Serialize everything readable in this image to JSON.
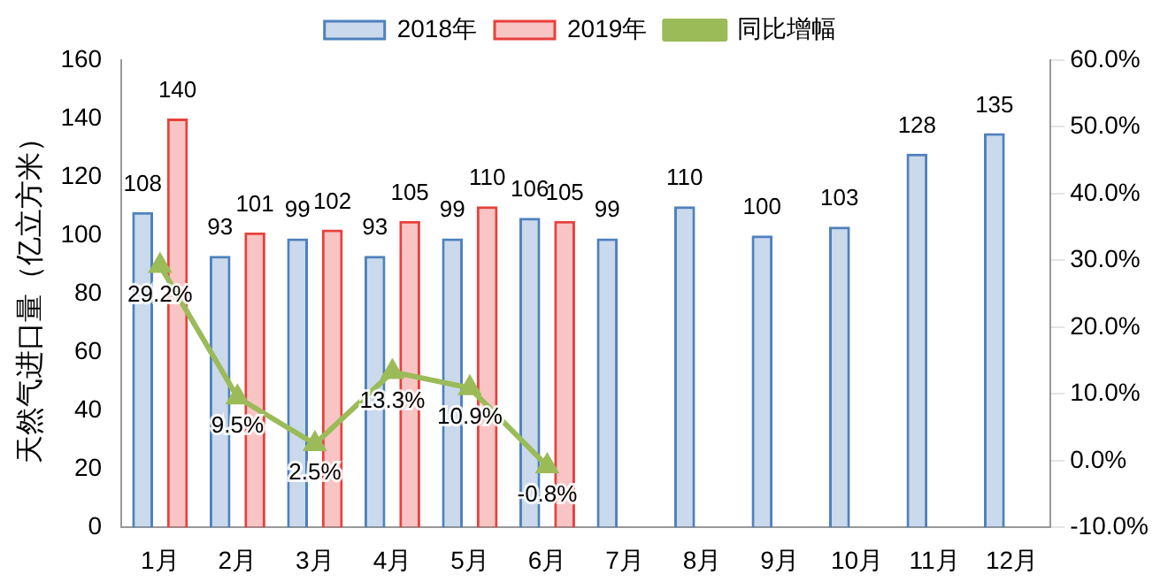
{
  "chart_data": {
    "type": "bar",
    "ylabel": "天然气进口量（亿立方米）",
    "categories": [
      "1月",
      "2月",
      "3月",
      "4月",
      "5月",
      "6月",
      "7月",
      "8月",
      "9月",
      "10月",
      "11月",
      "12月"
    ],
    "series": [
      {
        "name": "2018年",
        "color": "#4f81bd",
        "values": [
          108,
          93,
          99,
          93,
          99,
          106,
          99,
          110,
          100,
          103,
          128,
          135
        ]
      },
      {
        "name": "2019年",
        "color": "#e8403c",
        "values": [
          140,
          101,
          102,
          105,
          110,
          105,
          null,
          null,
          null,
          null,
          null,
          null
        ]
      },
      {
        "name": "同比增幅",
        "type": "line",
        "axis": "y2",
        "color": "#9bbb59",
        "marker": "triangle",
        "values": [
          29.2,
          9.5,
          2.5,
          13.3,
          10.9,
          -0.8,
          null,
          null,
          null,
          null,
          null,
          null
        ],
        "value_labels": [
          "29.2%",
          "9.5%",
          "2.5%",
          "13.3%",
          "10.9%",
          "-0.8%",
          null,
          null,
          null,
          null,
          null,
          null
        ]
      }
    ],
    "ylim": [
      0,
      160
    ],
    "yticks": [
      0,
      20,
      40,
      60,
      80,
      100,
      120,
      140,
      160
    ],
    "y2lim": [
      -10,
      60
    ],
    "y2ticks": [
      {
        "value": -10,
        "label": "-10.0%"
      },
      {
        "value": 0,
        "label": "0.0%"
      },
      {
        "value": 10,
        "label": "10.0%"
      },
      {
        "value": 20,
        "label": "20.0%"
      },
      {
        "value": 30,
        "label": "30.0%"
      },
      {
        "value": 40,
        "label": "40.0%"
      },
      {
        "value": 50,
        "label": "50.0%"
      },
      {
        "value": 60,
        "label": "60.0%"
      }
    ],
    "grid": false,
    "legend": "top",
    "data_labels": true
  }
}
